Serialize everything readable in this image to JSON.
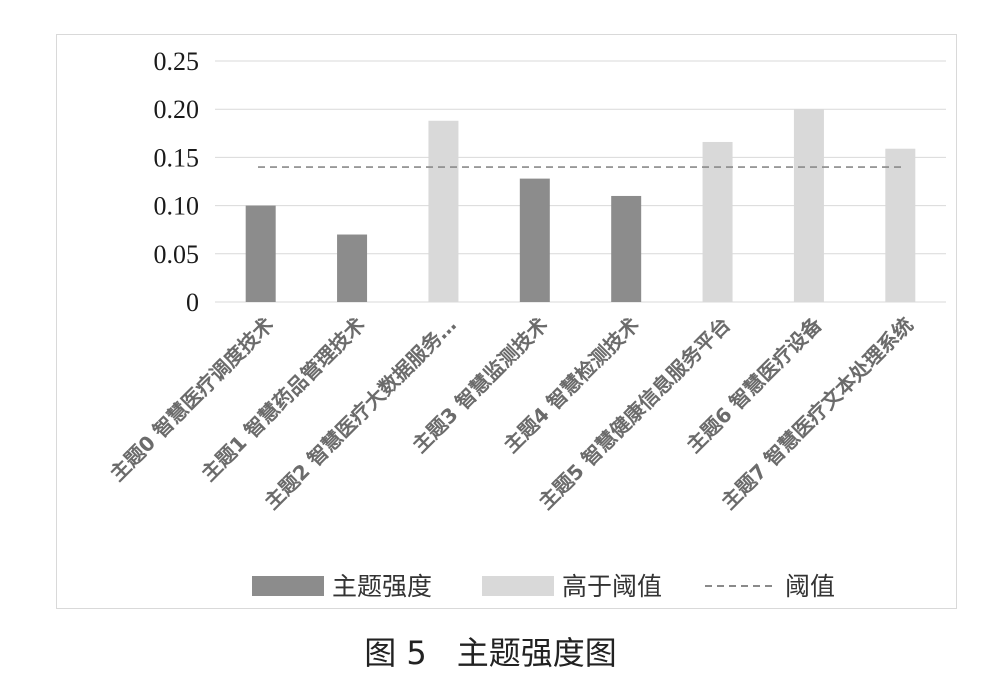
{
  "chart_data": {
    "type": "bar",
    "categories": [
      "主题0 智慧医疗调度技术",
      "主题1 智慧药品管理技术",
      "主题2 智慧医疗大数据服务…",
      "主题3 智慧监测技术",
      "主题4 智慧检测技术",
      "主题5 智慧健康信息服务平台",
      "主题6 智慧医疗设备",
      "主题7 智慧医疗文本处理系统"
    ],
    "values": [
      0.1,
      0.07,
      0.188,
      0.128,
      0.11,
      0.166,
      0.2,
      0.159
    ],
    "above_threshold": [
      false,
      false,
      true,
      false,
      false,
      true,
      true,
      true
    ],
    "threshold": 0.14,
    "ylim": [
      0,
      0.25
    ],
    "yticks": [
      0,
      0.05,
      0.1,
      0.15,
      0.2,
      0.25
    ],
    "ytick_labels": [
      "0",
      "0.05",
      "0.10",
      "0.15",
      "0.20",
      "0.25"
    ],
    "legend": {
      "position": "bottom",
      "items": [
        "主题强度",
        "高于阈值",
        "阈值"
      ]
    },
    "colors": {
      "below": "#8c8c8c",
      "above": "#d9d9d9",
      "threshold_line": "#8a8a8a",
      "grid": "#d9d9d9"
    },
    "grid": true
  },
  "caption": {
    "label": "图 5",
    "title": "主题强度图"
  }
}
